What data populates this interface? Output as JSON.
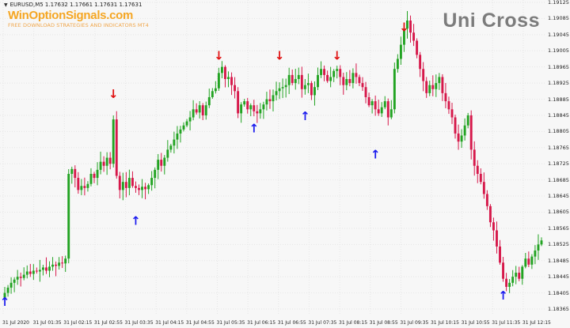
{
  "header": {
    "symbol_info": "EURUSD,M5  1.17632 1.17661 1.17631 1.17631",
    "brand_title": "WinOptionSignals.com",
    "brand_subtitle": "FREE DOWNLOAD STRATEGIES AND INDICATORS MT4",
    "indicator_name": "Uni Cross"
  },
  "colors": {
    "bull": "#22a322",
    "bear": "#d6184a",
    "buy_arrow": "#1a1aee",
    "sell_arrow": "#e01010",
    "grid": "#e6e6e6"
  },
  "chart_data": {
    "type": "candlestick",
    "symbol": "EURUSD",
    "timeframe": "M5",
    "ylim": [
      1.18365,
      1.19125
    ],
    "price_ticks": [
      "1.19125",
      "1.19085",
      "1.19045",
      "1.19005",
      "1.18965",
      "1.18925",
      "1.18885",
      "1.18845",
      "1.18805",
      "1.18765",
      "1.18725",
      "1.18685",
      "1.18645",
      "1.18605",
      "1.18565",
      "1.18525",
      "1.18485",
      "1.18445",
      "1.18405",
      "1.18365"
    ],
    "time_ticks": [
      "31 Jul 2020",
      "31 Jul 01:35",
      "31 Jul 02:15",
      "31 Jul 02:55",
      "31 Jul 03:35",
      "31 Jul 04:15",
      "31 Jul 04:55",
      "31 Jul 05:35",
      "31 Jul 06:15",
      "31 Jul 06:55",
      "31 Jul 07:35",
      "31 Jul 08:15",
      "31 Jul 08:55",
      "31 Jul 09:35",
      "31 Jul 10:15",
      "31 Jul 10:55",
      "31 Jul 11:35",
      "31 Jul 12:15"
    ],
    "closes": [
      1.18405,
      1.18418,
      1.1843,
      1.18438,
      1.18445,
      1.18442,
      1.1845,
      1.18458,
      1.18452,
      1.1846,
      1.18458,
      1.18462,
      1.18468,
      1.1846,
      1.1847,
      1.18475,
      1.18472,
      1.1848,
      1.18478,
      1.1849,
      1.187,
      1.18712,
      1.1869,
      1.1866,
      1.1867,
      1.18665,
      1.18675,
      1.187,
      1.1869,
      1.1871,
      1.1873,
      1.1872,
      1.1874,
      1.18725,
      1.18835,
      1.18695,
      1.1866,
      1.1868,
      1.18665,
      1.1869,
      1.1867,
      1.18665,
      1.1866,
      1.18668,
      1.18662,
      1.18672,
      1.1869,
      1.1871,
      1.18735,
      1.1872,
      1.1874,
      1.1876,
      1.1877,
      1.18785,
      1.188,
      1.1881,
      1.1882,
      1.1883,
      1.1884,
      1.1886,
      1.18852,
      1.1887,
      1.18845,
      1.1887,
      1.1889,
      1.18905,
      1.18912,
      1.1895,
      1.18965,
      1.18935,
      1.1894,
      1.1892,
      1.18905,
      1.1885,
      1.18872,
      1.1888,
      1.1886,
      1.1887,
      1.18855,
      1.1885,
      1.1886,
      1.18872,
      1.18885,
      1.1888,
      1.18895,
      1.18905,
      1.18912,
      1.18915,
      1.1892,
      1.18945,
      1.18925,
      1.18935,
      1.18945,
      1.1891,
      1.1892,
      1.18925,
      1.18895,
      1.18915,
      1.18945,
      1.1896,
      1.18945,
      1.1893,
      1.1894,
      1.18955,
      1.1896,
      1.1894,
      1.1892,
      1.18935,
      1.18925,
      1.1895,
      1.1894,
      1.18925,
      1.18915,
      1.1889,
      1.1887,
      1.1888,
      1.1886,
      1.1885,
      1.18865,
      1.1888,
      1.1884,
      1.1886,
      1.1896,
      1.18985,
      1.1902,
      1.1906,
      1.1908,
      1.1905,
      1.1903,
      1.18995,
      1.1896,
      1.1893,
      1.189,
      1.1892,
      1.1891,
      1.18925,
      1.1894,
      1.189,
      1.1888,
      1.1886,
      1.1884,
      1.188,
      1.1878,
      1.18795,
      1.1882,
      1.18845,
      1.1876,
      1.1872,
      1.187,
      1.1868,
      1.1865,
      1.1862,
      1.1858,
      1.1856,
      1.1852,
      1.1848,
      1.1844,
      1.1842,
      1.1843,
      1.18445,
      1.18455,
      1.1844,
      1.1847,
      1.1849,
      1.18475,
      1.18495,
      1.1851,
      1.18525,
      1.18535
    ]
  },
  "signals": {
    "buy_arrow_glyph": "↑",
    "sell_arrow_glyph": "↓",
    "buy": [
      {
        "bar": 0,
        "price": 1.18385
      },
      {
        "bar": 41,
        "price": 1.18585
      },
      {
        "bar": 78,
        "price": 1.18815
      },
      {
        "bar": 94,
        "price": 1.18845
      },
      {
        "bar": 116,
        "price": 1.1875
      },
      {
        "bar": 156,
        "price": 1.184
      }
    ],
    "sell": [
      {
        "bar": 34,
        "price": 1.189
      },
      {
        "bar": 67,
        "price": 1.18995
      },
      {
        "bar": 86,
        "price": 1.18995
      },
      {
        "bar": 104,
        "price": 1.18995
      },
      {
        "bar": 125,
        "price": 1.19065
      }
    ]
  }
}
